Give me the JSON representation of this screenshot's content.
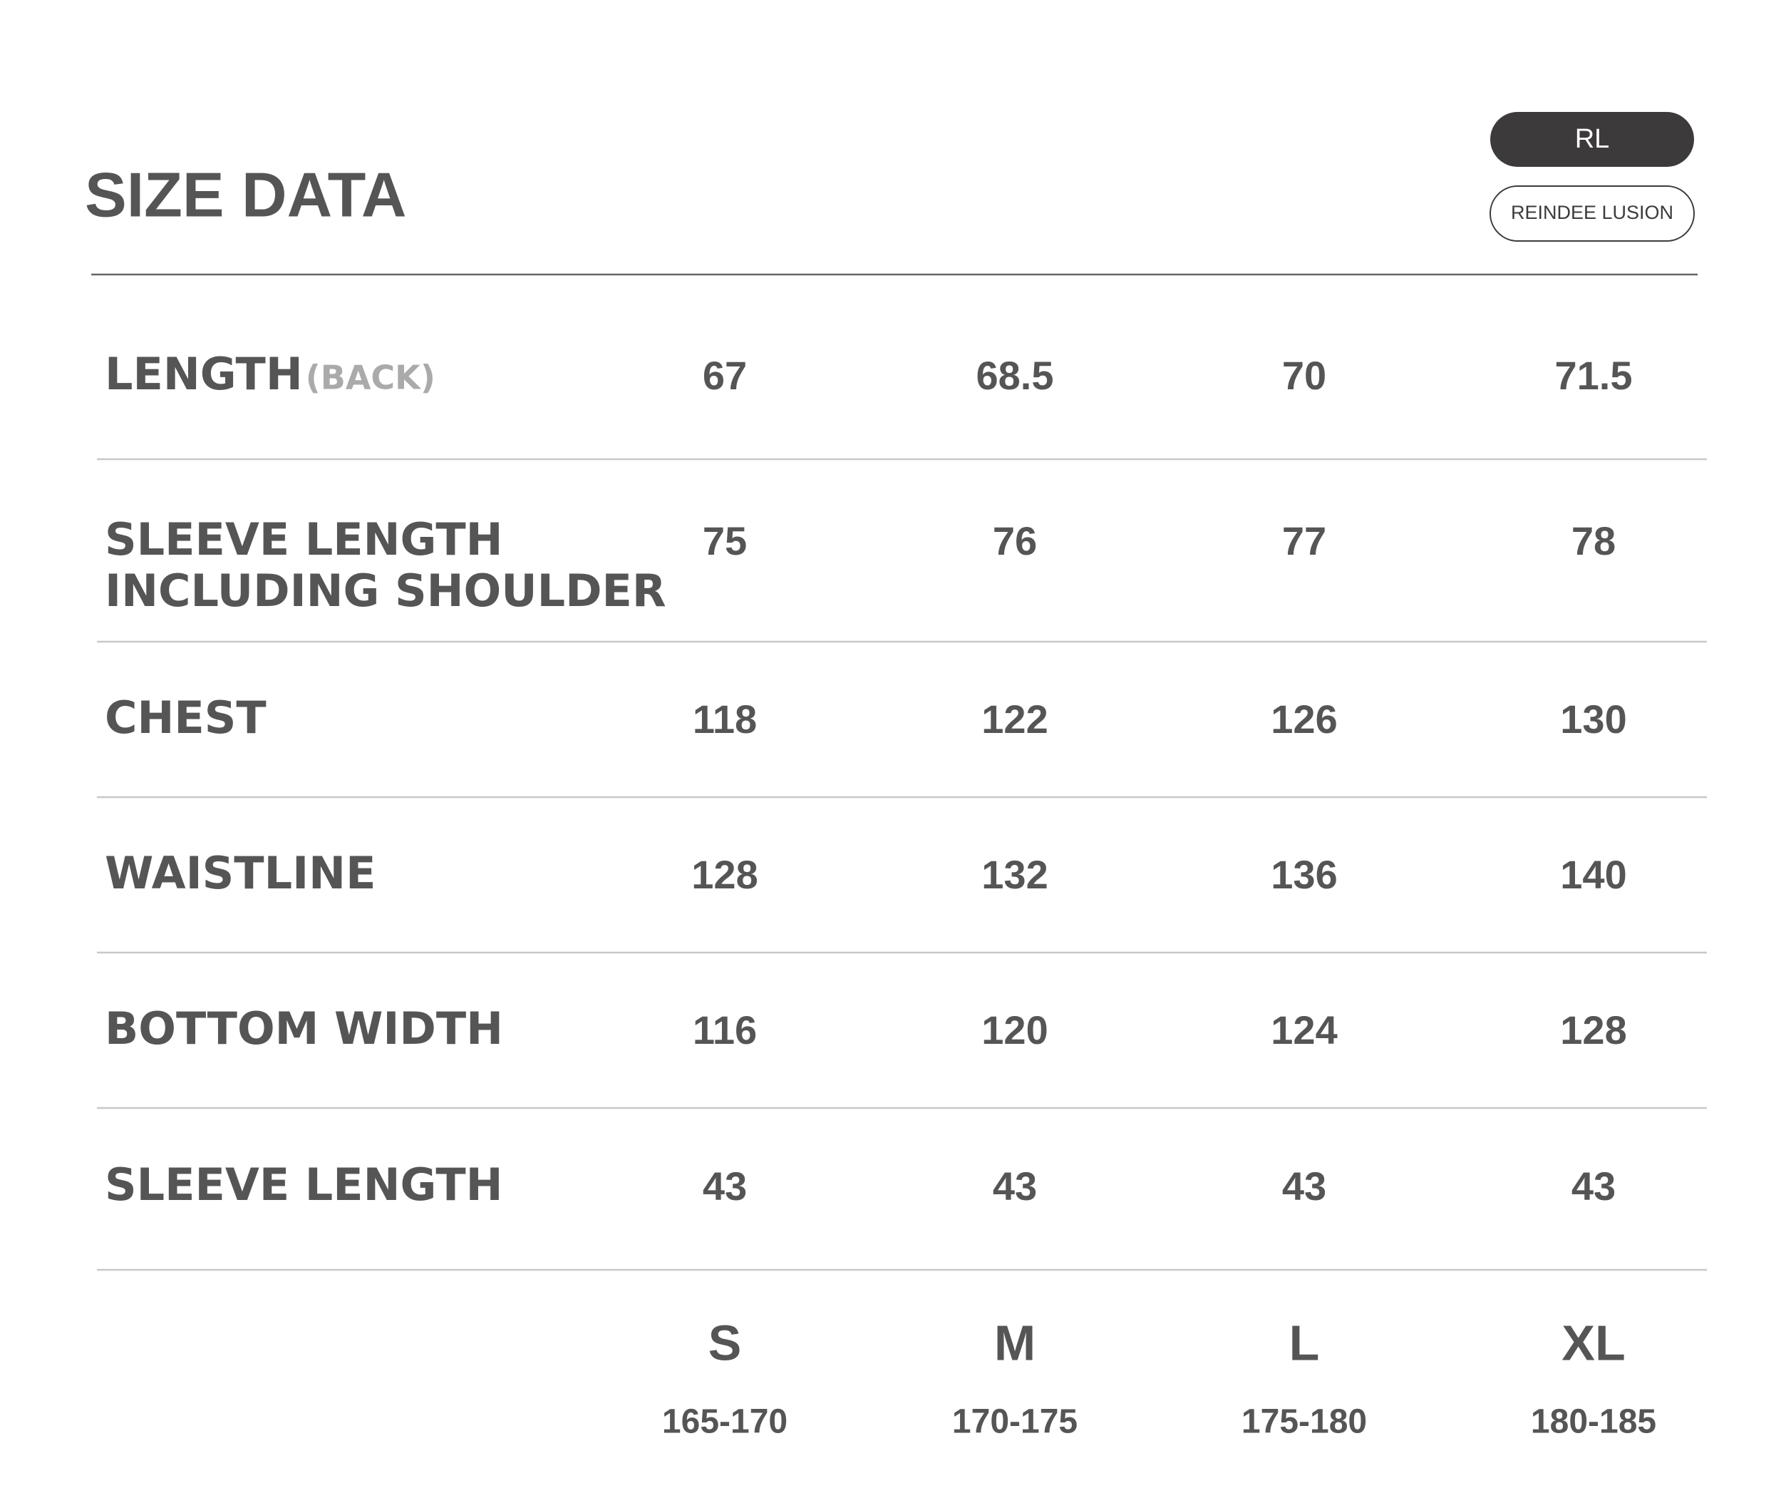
{
  "header": {
    "title": "SIZE DATA",
    "badge": "RL",
    "brand": "REINDEE LUSION"
  },
  "table": {
    "rows": [
      {
        "label": [
          "LENGTH"
        ],
        "note": "(BACK)",
        "values": [
          67,
          68.5,
          70,
          71.5
        ]
      },
      {
        "label": [
          "SLEEVE LENGTH",
          "INCLUDING SHOULDER"
        ],
        "values": [
          75,
          76,
          77,
          78
        ]
      },
      {
        "label": [
          "CHEST"
        ],
        "values": [
          118,
          122,
          126,
          130
        ]
      },
      {
        "label": [
          "WAISTLINE"
        ],
        "values": [
          128,
          132,
          136,
          140
        ]
      },
      {
        "label": [
          "BOTTOM WIDTH"
        ],
        "values": [
          116,
          120,
          124,
          128
        ]
      },
      {
        "label": [
          "SLEEVE LENGTH"
        ],
        "values": [
          43,
          43,
          43,
          43
        ]
      }
    ],
    "sizes": [
      "S",
      "M",
      "L",
      "XL"
    ],
    "heights": [
      "165-170",
      "170-175",
      "175-180",
      "180-185"
    ]
  }
}
